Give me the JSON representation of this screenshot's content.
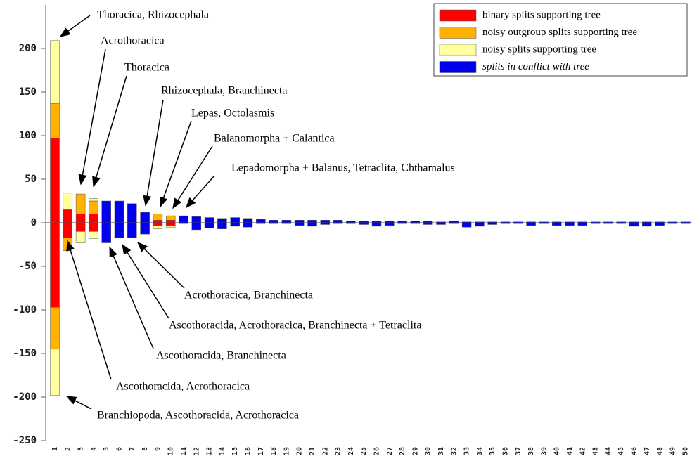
{
  "chart_data": {
    "type": "bar",
    "categories": [
      "1",
      "2",
      "3",
      "4",
      "5",
      "6",
      "7",
      "8",
      "9",
      "10",
      "11",
      "12",
      "13",
      "14",
      "15",
      "16",
      "17",
      "18",
      "19",
      "20",
      "21",
      "22",
      "23",
      "24",
      "25",
      "26",
      "27",
      "28",
      "29",
      "30",
      "31",
      "32",
      "33",
      "34",
      "35",
      "36",
      "37",
      "38",
      "39",
      "40",
      "41",
      "42",
      "43",
      "44",
      "45",
      "46",
      "47",
      "48",
      "49",
      "50"
    ],
    "series": [
      {
        "name": "binary splits supporting tree",
        "color": "#ff0000",
        "values": [
          97,
          15,
          10,
          10,
          null,
          null,
          null,
          null,
          3,
          3,
          null,
          null,
          null,
          null,
          null,
          null,
          null,
          null,
          null,
          null,
          null,
          null,
          null,
          null,
          null,
          null,
          null,
          null,
          null,
          null,
          null,
          null,
          null,
          null,
          null,
          null,
          null,
          null,
          null,
          null,
          null,
          null,
          null,
          null,
          null,
          null,
          null,
          null,
          null,
          null
        ],
        "values_below": [
          -97,
          -17,
          -10,
          -10,
          null,
          null,
          null,
          null,
          -3,
          -3,
          null,
          null,
          null,
          null,
          null,
          null,
          null,
          null,
          null,
          null,
          null,
          null,
          null,
          null,
          null,
          null,
          null,
          null,
          null,
          null,
          null,
          null,
          null,
          null,
          null,
          null,
          null,
          null,
          null,
          null,
          null,
          null,
          null,
          null,
          null,
          null,
          null,
          null,
          null,
          null
        ]
      },
      {
        "name": "noisy outgroup splits supporting tree",
        "color": "#ffb300",
        "values": [
          40,
          null,
          23,
          15,
          null,
          null,
          null,
          null,
          7,
          5,
          null,
          null,
          null,
          null,
          null,
          null,
          null,
          null,
          null,
          null,
          null,
          null,
          null,
          null,
          null,
          null,
          null,
          null,
          null,
          null,
          null,
          null,
          null,
          null,
          null,
          null,
          null,
          null,
          null,
          null,
          null,
          null,
          null,
          null,
          null,
          null,
          null,
          null,
          null,
          null
        ],
        "values_below": [
          -48,
          -15,
          null,
          null,
          null,
          null,
          null,
          null,
          null,
          null,
          null,
          null,
          null,
          null,
          null,
          null,
          null,
          null,
          null,
          null,
          null,
          null,
          null,
          null,
          null,
          null,
          null,
          null,
          null,
          null,
          null,
          null,
          null,
          null,
          null,
          null,
          null,
          null,
          null,
          null,
          null,
          null,
          null,
          null,
          null,
          null,
          null,
          null,
          null,
          null
        ]
      },
      {
        "name": "noisy splits supporting tree",
        "color": "#ffffa0",
        "values": [
          72,
          19,
          null,
          3,
          null,
          null,
          null,
          null,
          null,
          null,
          null,
          null,
          null,
          null,
          null,
          null,
          null,
          null,
          null,
          null,
          null,
          null,
          null,
          null,
          null,
          null,
          null,
          null,
          null,
          null,
          null,
          null,
          null,
          null,
          null,
          null,
          null,
          null,
          null,
          null,
          null,
          null,
          null,
          null,
          null,
          null,
          null,
          null,
          null,
          null
        ],
        "values_below": [
          -53,
          null,
          -13,
          -8,
          null,
          null,
          null,
          null,
          -4,
          -2,
          null,
          null,
          null,
          null,
          null,
          null,
          null,
          null,
          null,
          null,
          null,
          null,
          null,
          null,
          null,
          null,
          null,
          null,
          null,
          null,
          null,
          null,
          null,
          null,
          null,
          null,
          null,
          null,
          null,
          null,
          null,
          null,
          null,
          null,
          null,
          null,
          null,
          null,
          null,
          null
        ]
      },
      {
        "name": "splits in conflict with tree",
        "color": "#0000ee",
        "values": [
          null,
          null,
          null,
          null,
          25,
          25,
          22,
          12,
          null,
          null,
          8,
          7,
          6,
          5,
          6,
          5,
          4,
          3,
          3,
          3,
          3,
          3,
          3,
          2,
          2,
          2,
          2,
          2,
          2,
          2,
          1,
          2,
          1,
          1,
          1,
          1,
          1,
          1,
          1,
          1,
          1,
          1,
          1,
          1,
          1,
          1,
          1,
          1,
          1,
          1
        ],
        "values_below": [
          null,
          null,
          null,
          null,
          -23,
          -17,
          -17,
          -13,
          null,
          null,
          -1,
          -8,
          -6,
          -7,
          -4,
          -5,
          -1,
          -1,
          -1,
          -3,
          -4,
          -2,
          -1,
          -1,
          -2,
          -4,
          -3,
          -1,
          -1,
          -2,
          -2,
          -1,
          -5,
          -4,
          -2,
          -1,
          -1,
          -3,
          -1,
          -3,
          -3,
          -3,
          -1,
          -1,
          -1,
          -4,
          -4,
          -3,
          -1,
          -1
        ]
      }
    ],
    "annotations": [
      "Thoracica, Rhizocephala",
      "Acrothoracica",
      "Thoracica",
      "Rhizocephala, Branchinecta",
      "Lepas, Octolasmis",
      "Balanomorpha + Calantica",
      "Lepadomorpha + Balanus, Tetraclita, Chthamalus",
      "Acrothoracica, Branchinecta",
      "Ascothoracida, Acrothoracica, Branchinecta + Tetraclita",
      "Ascothoracida, Branchinecta",
      "Ascothoracida, Acrothoracica",
      "Branchiopoda, Ascothoracida, Acrothoracica"
    ],
    "ylim": [
      -250,
      250
    ],
    "yticks": [
      -250,
      -200,
      -150,
      -100,
      -50,
      0,
      50,
      100,
      150,
      200
    ],
    "legend": "upper right"
  }
}
